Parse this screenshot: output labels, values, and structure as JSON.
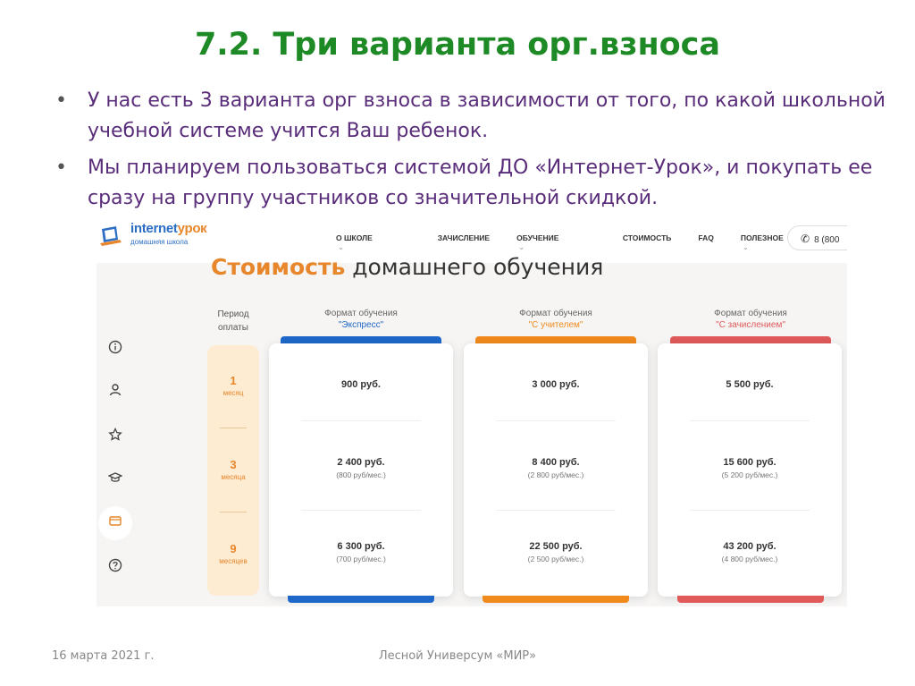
{
  "slide": {
    "title": "7.2. Три варианта орг.взноса",
    "bullets": [
      "У нас есть 3 варианта орг взноса в зависимости от того, по какой школьной учебной системе учится Ваш ребенок.",
      "Мы планируем пользоваться системой ДО «Интернет-Урок», и покупать ее сразу на группу участников со значительной скидкой."
    ],
    "footer_date": "16 марта 2021 г.",
    "footer_center": "Лесной Универсум «МИР»"
  },
  "site": {
    "logo_part1": "internet",
    "logo_part2": "урок",
    "logo_sub": "домашняя школа",
    "nav": [
      "О ШКОЛЕ",
      "ЗАЧИСЛЕНИЕ",
      "ОБУЧЕНИЕ",
      "СТОИМОСТЬ",
      "FAQ",
      "ПОЛЕЗНОЕ"
    ],
    "phone": "8 (800",
    "heading_accent": "Стоимость",
    "heading_rest": "домашнего обучения",
    "sidebar_icons": [
      "info-icon",
      "user-icon",
      "star-icon",
      "graduation-cap-icon",
      "wallet-icon",
      "help-icon"
    ],
    "period_header": "Период оплаты",
    "periods": [
      {
        "n": "1",
        "unit": "месяц"
      },
      {
        "n": "3",
        "unit": "месяца"
      },
      {
        "n": "9",
        "unit": "месяцев"
      }
    ],
    "plans": [
      {
        "format_label": "Формат обучения",
        "name": "\"Экспресс\"",
        "color": "#1f68c9",
        "prices": [
          {
            "price": "900 руб.",
            "monthly": ""
          },
          {
            "price": "2 400 руб.",
            "monthly": "(800 руб/мес.)"
          },
          {
            "price": "6 300 руб.",
            "monthly": "(700 руб/мес.)"
          }
        ]
      },
      {
        "format_label": "Формат обучения",
        "name": "\"С учителем\"",
        "color": "#f08a1d",
        "prices": [
          {
            "price": "3 000 руб.",
            "monthly": ""
          },
          {
            "price": "8 400 руб.",
            "monthly": "(2 800 руб/мес.)"
          },
          {
            "price": "22 500 руб.",
            "monthly": "(2 500 руб/мес.)"
          }
        ]
      },
      {
        "format_label": "Формат обучения",
        "name": "\"С зачислением\"",
        "color": "#e05a5a",
        "prices": [
          {
            "price": "5 500 руб.",
            "monthly": ""
          },
          {
            "price": "15 600 руб.",
            "monthly": "(5 200 руб/мес.)"
          },
          {
            "price": "43 200 руб.",
            "monthly": "(4 800 руб/мес.)"
          }
        ]
      }
    ]
  }
}
